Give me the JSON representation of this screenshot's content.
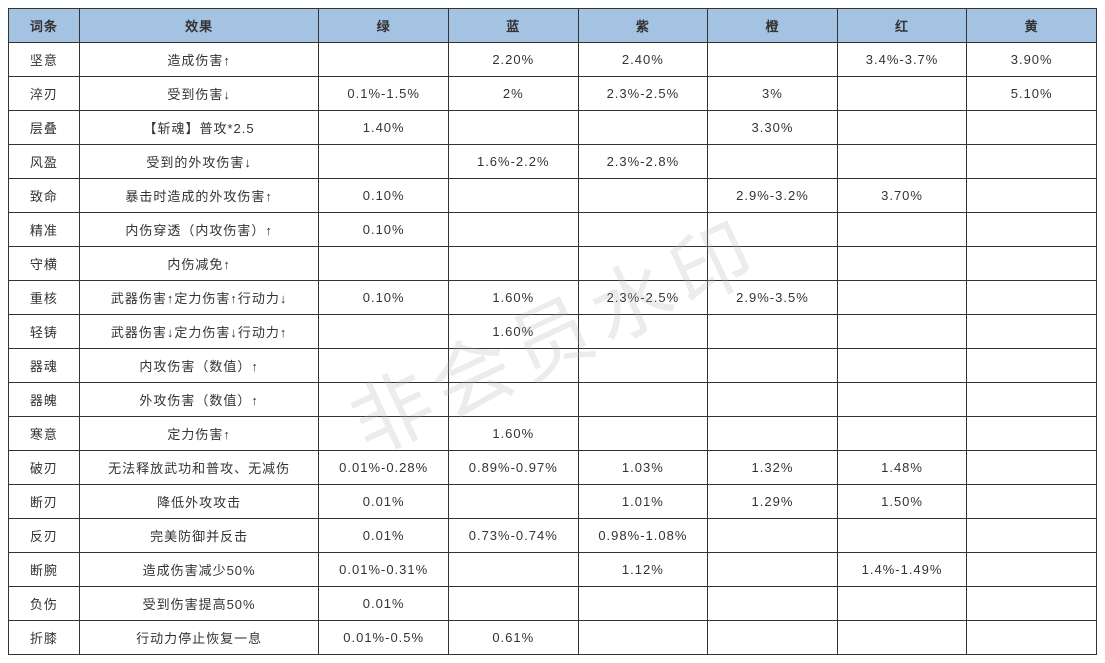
{
  "watermark": "非会员水印",
  "table": {
    "header_bg": "#a4c2e2",
    "border_color": "#333333",
    "columns": [
      "词条",
      "效果",
      "绿",
      "蓝",
      "紫",
      "橙",
      "红",
      "黄"
    ],
    "rows": [
      {
        "entry": "坚意",
        "effect": "造成伤害↑",
        "green": "",
        "blue": "2.20%",
        "purple": "2.40%",
        "orange": "",
        "red": "3.4%-3.7%",
        "yellow": "3.90%"
      },
      {
        "entry": "淬刃",
        "effect": "受到伤害↓",
        "green": "0.1%-1.5%",
        "blue": "2%",
        "purple": "2.3%-2.5%",
        "orange": "3%",
        "red": "",
        "yellow": "5.10%"
      },
      {
        "entry": "层叠",
        "effect": "【斩魂】普攻*2.5",
        "green": "1.40%",
        "blue": "",
        "purple": "",
        "orange": "3.30%",
        "red": "",
        "yellow": ""
      },
      {
        "entry": "风盈",
        "effect": "受到的外攻伤害↓",
        "green": "",
        "blue": "1.6%-2.2%",
        "purple": "2.3%-2.8%",
        "orange": "",
        "red": "",
        "yellow": ""
      },
      {
        "entry": "致命",
        "effect": "暴击时造成的外攻伤害↑",
        "green": "0.10%",
        "blue": "",
        "purple": "",
        "orange": "2.9%-3.2%",
        "red": "3.70%",
        "yellow": ""
      },
      {
        "entry": "精准",
        "effect": "内伤穿透（内攻伤害）↑",
        "green": "0.10%",
        "blue": "",
        "purple": "",
        "orange": "",
        "red": "",
        "yellow": ""
      },
      {
        "entry": "守横",
        "effect": "内伤减免↑",
        "green": "",
        "blue": "",
        "purple": "",
        "orange": "",
        "red": "",
        "yellow": ""
      },
      {
        "entry": "重核",
        "effect": "武器伤害↑定力伤害↑行动力↓",
        "green": "0.10%",
        "blue": "1.60%",
        "purple": "2.3%-2.5%",
        "orange": "2.9%-3.5%",
        "red": "",
        "yellow": ""
      },
      {
        "entry": "轻铸",
        "effect": "武器伤害↓定力伤害↓行动力↑",
        "green": "",
        "blue": "1.60%",
        "purple": "",
        "orange": "",
        "red": "",
        "yellow": ""
      },
      {
        "entry": "器魂",
        "effect": "内攻伤害（数值）↑",
        "green": "",
        "blue": "",
        "purple": "",
        "orange": "",
        "red": "",
        "yellow": ""
      },
      {
        "entry": "器魄",
        "effect": "外攻伤害（数值）↑",
        "green": "",
        "blue": "",
        "purple": "",
        "orange": "",
        "red": "",
        "yellow": ""
      },
      {
        "entry": "寒意",
        "effect": "定力伤害↑",
        "green": "",
        "blue": "1.60%",
        "purple": "",
        "orange": "",
        "red": "",
        "yellow": ""
      },
      {
        "entry": "破刃",
        "effect": "无法释放武功和普攻、无减伤",
        "green": "0.01%-0.28%",
        "blue": "0.89%-0.97%",
        "purple": "1.03%",
        "orange": "1.32%",
        "red": "1.48%",
        "yellow": ""
      },
      {
        "entry": "断刃",
        "effect": "降低外攻攻击",
        "green": "0.01%",
        "blue": "",
        "purple": "1.01%",
        "orange": "1.29%",
        "red": "1.50%",
        "yellow": ""
      },
      {
        "entry": "反刃",
        "effect": "完美防御并反击",
        "green": "0.01%",
        "blue": "0.73%-0.74%",
        "purple": "0.98%-1.08%",
        "orange": "",
        "red": "",
        "yellow": ""
      },
      {
        "entry": "断腕",
        "effect": "造成伤害减少50%",
        "green": "0.01%-0.31%",
        "blue": "",
        "purple": "1.12%",
        "orange": "",
        "red": "1.4%-1.49%",
        "yellow": ""
      },
      {
        "entry": "负伤",
        "effect": "受到伤害提高50%",
        "green": "0.01%",
        "blue": "",
        "purple": "",
        "orange": "",
        "red": "",
        "yellow": ""
      },
      {
        "entry": "折膝",
        "effect": "行动力停止恢复一息",
        "green": "0.01%-0.5%",
        "blue": "0.61%",
        "purple": "",
        "orange": "",
        "red": "",
        "yellow": ""
      }
    ]
  }
}
